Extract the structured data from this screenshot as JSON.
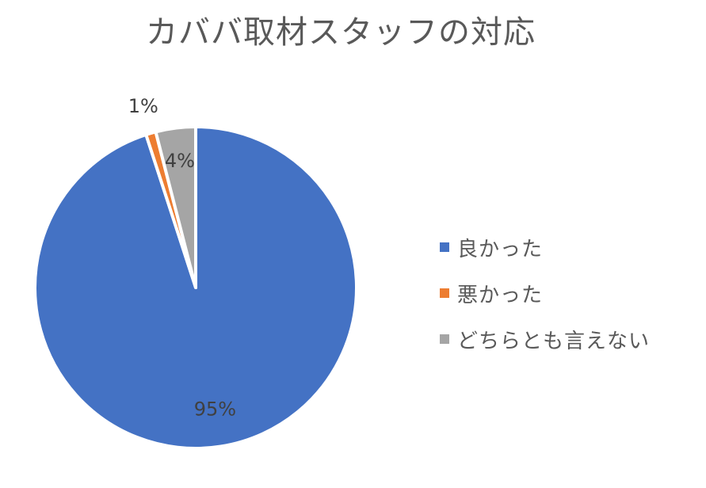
{
  "chart_data": {
    "type": "pie",
    "title": "カババ取材スタッフの対応",
    "categories": [
      "良かった",
      "悪かった",
      "どちらとも言えない"
    ],
    "values": [
      95,
      1,
      4
    ],
    "data_labels": [
      "95%",
      "1%",
      "4%"
    ],
    "colors": [
      "#4472C4",
      "#ED7D31",
      "#A5A5A5"
    ],
    "legend_position": "right",
    "start": "top",
    "direction": "clockwise"
  }
}
